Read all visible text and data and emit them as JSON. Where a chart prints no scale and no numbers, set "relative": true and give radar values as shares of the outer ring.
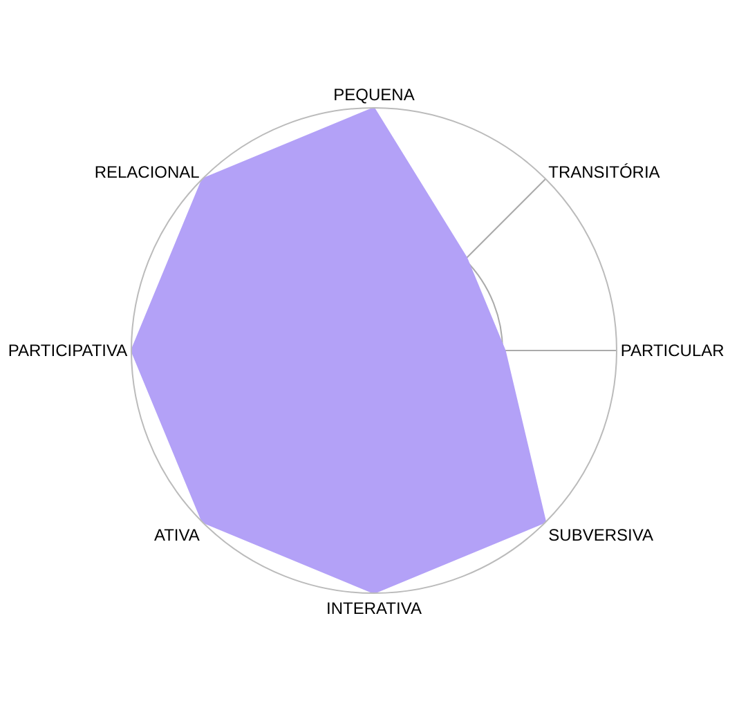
{
  "chart_data": {
    "type": "radar",
    "relative": true,
    "grid": true,
    "categories": [
      "PEQUENA",
      "TRANSITÓRIA",
      "PARTICULAR",
      "SUBVERSIVA",
      "INTERATIVA",
      "ATIVA",
      "PARTICIPATIVA",
      "RELACIONAL"
    ],
    "series": [
      {
        "color": "#b3a1f7",
        "values": [
          1,
          0.54,
          0.54,
          1,
          1,
          1,
          1,
          1
        ]
      }
    ]
  }
}
